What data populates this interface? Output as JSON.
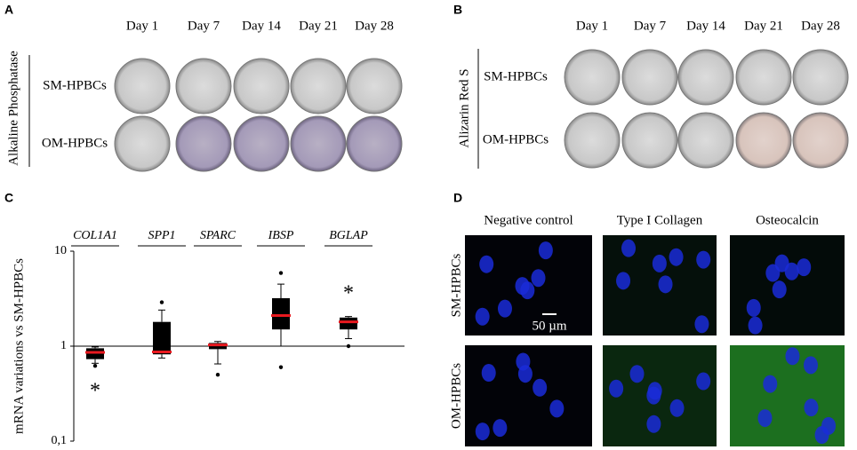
{
  "panel_a": {
    "letter": "A",
    "side_label": "Alkaline Phosphatase",
    "days": [
      "Day 1",
      "Day 7",
      "Day 14",
      "Day 21",
      "Day 28"
    ],
    "rows": [
      "SM-HPBCs",
      "OM-HPBCs"
    ]
  },
  "panel_b": {
    "letter": "B",
    "side_label": "Alizarin Red S",
    "days": [
      "Day 1",
      "Day 7",
      "Day 14",
      "Day 21",
      "Day 28"
    ],
    "rows": [
      "SM-HPBCs",
      "OM-HPBCs"
    ]
  },
  "panel_c": {
    "letter": "C"
  },
  "chart_data": {
    "type": "box",
    "ylabel": "mRNA variations vs SM-HPBCs",
    "categories": [
      "COL1A1",
      "SPP1",
      "SPARC",
      "IBSP",
      "BGLAP"
    ],
    "boxes": [
      {
        "whislo": 0.66,
        "q1": 0.73,
        "med": 0.86,
        "q3": 0.95,
        "whishi": 0.98,
        "fliers": [
          0.62
        ]
      },
      {
        "whislo": 0.75,
        "q1": 0.82,
        "med": 0.87,
        "q3": 1.8,
        "whishi": 2.4,
        "fliers": [
          2.9
        ]
      },
      {
        "whislo": 0.65,
        "q1": 0.93,
        "med": 1.03,
        "q3": 1.08,
        "whishi": 1.12,
        "fliers": [
          0.5
        ]
      },
      {
        "whislo": 1.0,
        "q1": 1.5,
        "med": 2.1,
        "q3": 3.2,
        "whishi": 4.5,
        "fliers": [
          5.9,
          0.6
        ]
      },
      {
        "whislo": 1.2,
        "q1": 1.5,
        "med": 1.8,
        "q3": 2.0,
        "whishi": 2.05,
        "fliers": [
          1.0
        ]
      }
    ],
    "significance": [
      "*",
      null,
      null,
      null,
      "*"
    ],
    "ylim": [
      0.1,
      10
    ],
    "yticks": [
      10,
      1,
      {
        "value": 0.1,
        "label": "0,1"
      }
    ],
    "log_scale": true,
    "box_color": "#000000",
    "median_color": "#e8191f"
  },
  "panel_d": {
    "letter": "D",
    "columns": [
      "Negative control",
      "Type I Collagen",
      "Osteocalcin"
    ],
    "rows": [
      "SM-HPBCs",
      "OM-HPBCs"
    ],
    "scale_bar": "50 µm"
  }
}
